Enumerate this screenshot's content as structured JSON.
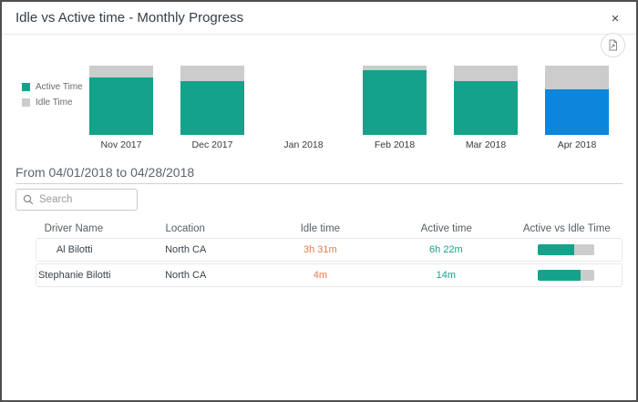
{
  "dialog": {
    "title": "Idle vs Active time - Monthly Progress",
    "close_label": "×"
  },
  "colors": {
    "active_teal": "#14a38a",
    "idle_gray": "#cccccc",
    "highlight_blue": "#0c86dc",
    "idle_text_orange": "#e8794e"
  },
  "chart_data": {
    "type": "bar",
    "stacked": true,
    "unit": "percent_of_month",
    "categories": [
      "Nov 2017",
      "Dec 2017",
      "Jan 2018",
      "Feb 2018",
      "Mar 2018",
      "Apr 2018"
    ],
    "series": [
      {
        "name": "Active Time",
        "color": "#14a38a",
        "values": [
          83,
          78,
          0,
          93,
          78,
          66
        ]
      },
      {
        "name": "Idle Time",
        "color": "#cccccc",
        "values": [
          17,
          22,
          0,
          7,
          22,
          34
        ]
      }
    ],
    "highlighted_category": "Apr 2018",
    "highlight_color": "#0c86dc",
    "ylim": [
      0,
      100
    ],
    "grid": false,
    "legend_position": "left",
    "note": "Jan 2018 has no bar (no data)"
  },
  "filter": {
    "date_range_label": "From 04/01/2018 to 04/28/2018"
  },
  "search": {
    "placeholder": "Search",
    "value": ""
  },
  "table": {
    "columns": [
      "Driver Name",
      "Location",
      "Idle time",
      "Active time",
      "Active vs Idle Time"
    ],
    "rows": [
      {
        "driver": "Al Bilotti",
        "location": "North CA",
        "idle_time": "3h 31m",
        "active_time": "6h 22m",
        "active_pct": 64
      },
      {
        "driver": "Stephanie Bilotti",
        "location": "North CA",
        "idle_time": "4m",
        "active_time": "14m",
        "active_pct": 76
      }
    ]
  }
}
